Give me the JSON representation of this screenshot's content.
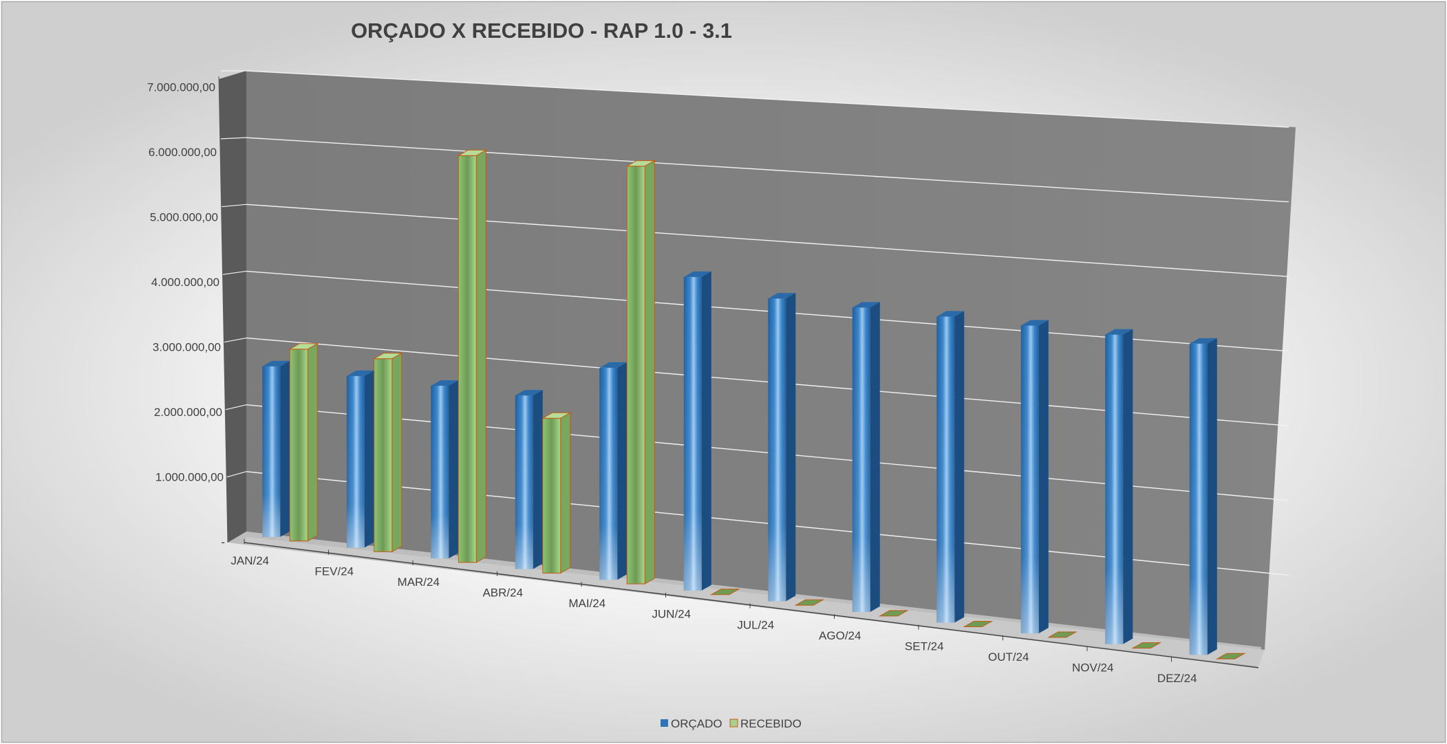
{
  "chart_data": {
    "type": "bar",
    "title": "ORÇADO X RECEBIDO - RAP 1.0 - 3.1",
    "categories": [
      "JAN/24",
      "FEV/24",
      "MAR/24",
      "ABR/24",
      "MAI/24",
      "JUN/24",
      "JUL/24",
      "AGO/24",
      "SET/24",
      "OUT/24",
      "NOV/24",
      "DEZ/24"
    ],
    "series": [
      {
        "name": "ORÇADO",
        "color": "#2E75B6",
        "values": [
          2800000,
          2800000,
          2800000,
          2800000,
          3400000,
          5000000,
          4800000,
          4800000,
          4800000,
          4800000,
          4800000,
          4800000
        ]
      },
      {
        "name": "RECEBIDO",
        "color": "#A9D18E",
        "edge": "#C55A11",
        "values": [
          3150000,
          3150000,
          6600000,
          2500000,
          6700000,
          0,
          0,
          0,
          0,
          0,
          0,
          0
        ]
      }
    ],
    "yticks": [
      "-",
      "1.000.000,00",
      "2.000.000,00",
      "3.000.000,00",
      "4.000.000,00",
      "5.000.000,00",
      "6.000.000,00",
      "7.000.000,00"
    ],
    "ylim": [
      0,
      7000000
    ],
    "grid": true,
    "legend": "bottom",
    "xlabel": "",
    "ylabel": ""
  }
}
